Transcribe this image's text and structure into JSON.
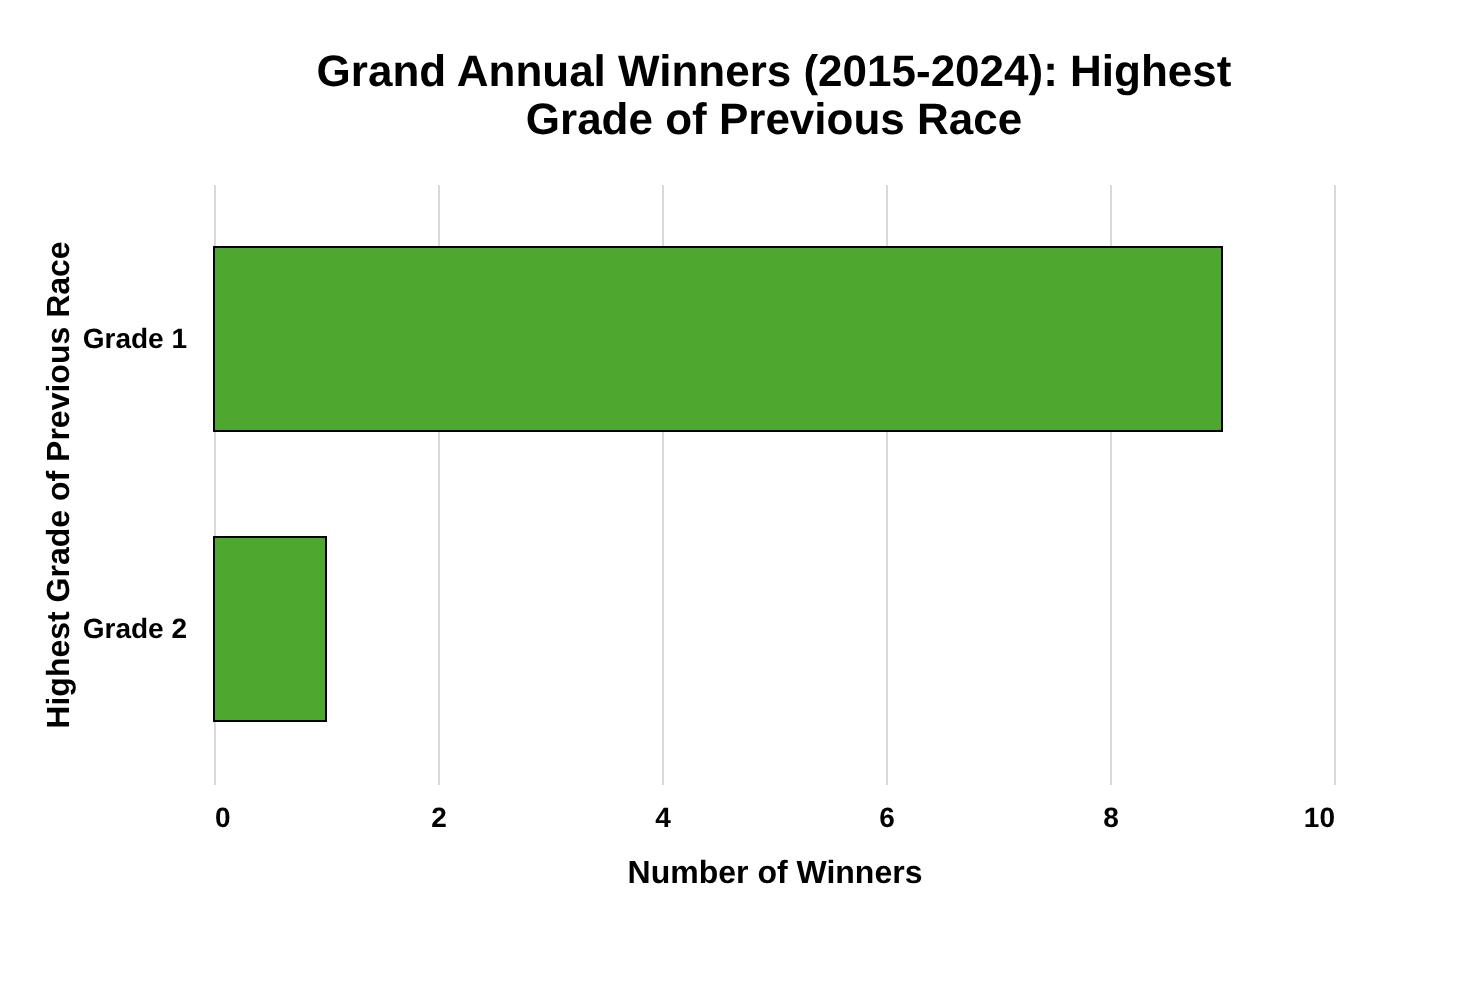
{
  "chart_data": {
    "type": "bar",
    "orientation": "horizontal",
    "title": "Grand Annual Winners (2015-2024): Highest Grade of Previous Race",
    "xlabel": "Number of Winners",
    "ylabel": "Highest Grade of Previous Race",
    "categories": [
      "Grade 1",
      "Grade 2"
    ],
    "values": [
      9,
      1
    ],
    "color": "#4ea72e",
    "xlim": [
      0,
      10
    ],
    "xticks": [
      0,
      2,
      4,
      6,
      8,
      10
    ],
    "grid": "x"
  }
}
